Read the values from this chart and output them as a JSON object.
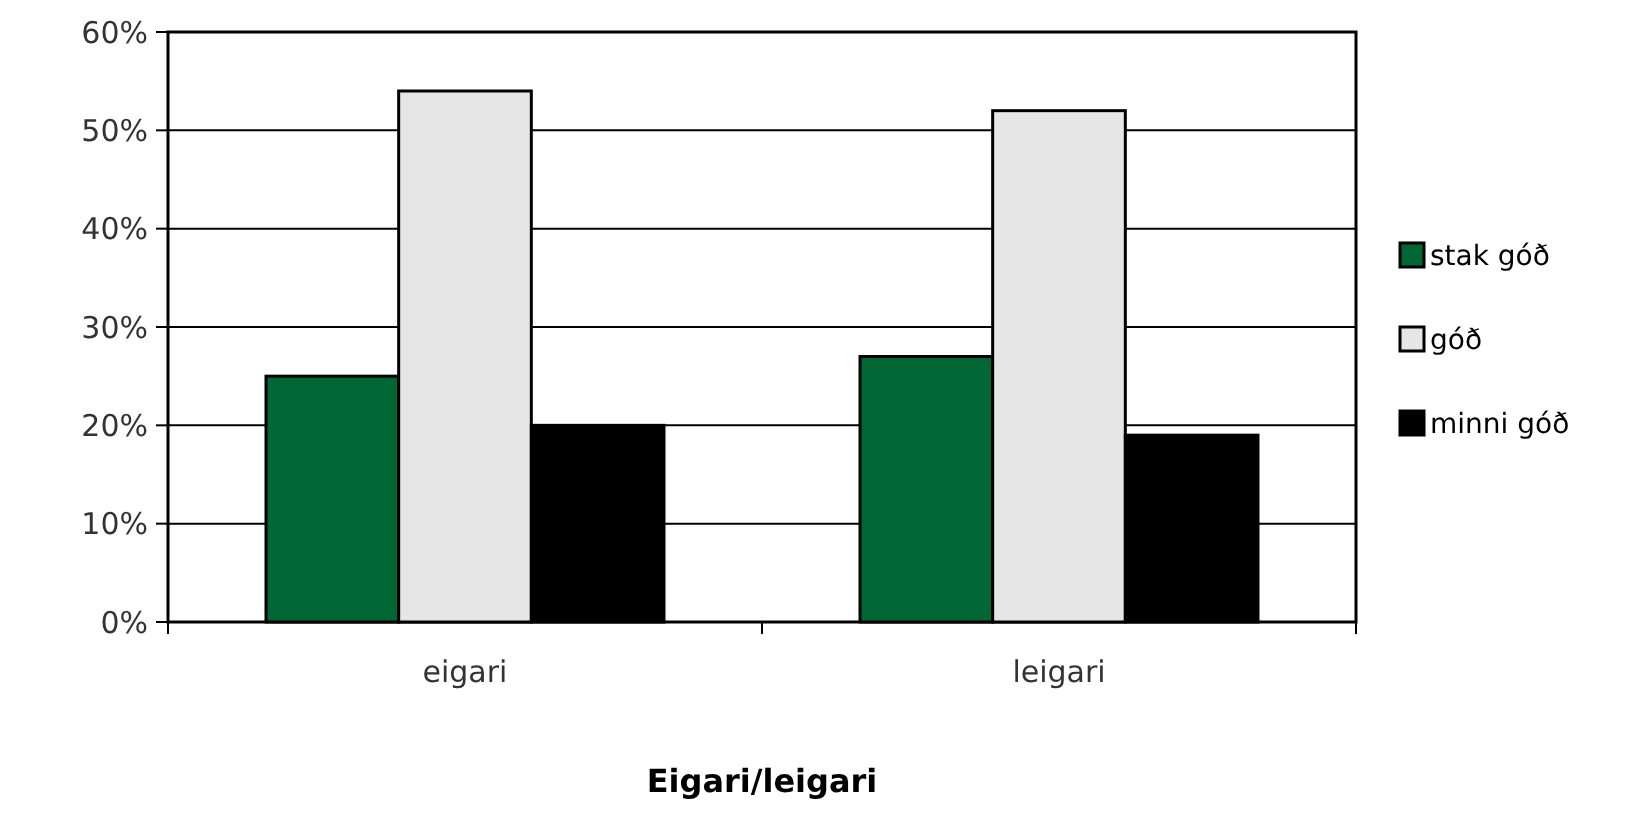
{
  "chart_data": {
    "type": "bar",
    "xlabel": "Eigari/leigari",
    "categories": [
      "eigari",
      "leigari"
    ],
    "series": [
      {
        "name": "stak góð",
        "color": "#006633",
        "values": [
          25,
          27
        ]
      },
      {
        "name": "góð",
        "color": "#e6e6e6",
        "values": [
          54,
          52
        ]
      },
      {
        "name": "minni góð",
        "color": "#000000",
        "values": [
          20,
          19
        ]
      }
    ],
    "ylim": [
      0,
      60
    ],
    "yticks": [
      {
        "value": 0,
        "label": "0%"
      },
      {
        "value": 10,
        "label": "10%"
      },
      {
        "value": 20,
        "label": "20%"
      },
      {
        "value": 30,
        "label": "30%"
      },
      {
        "value": 40,
        "label": "40%"
      },
      {
        "value": 50,
        "label": "50%"
      },
      {
        "value": 60,
        "label": "60%"
      }
    ],
    "grid": "y",
    "legend": "right"
  }
}
